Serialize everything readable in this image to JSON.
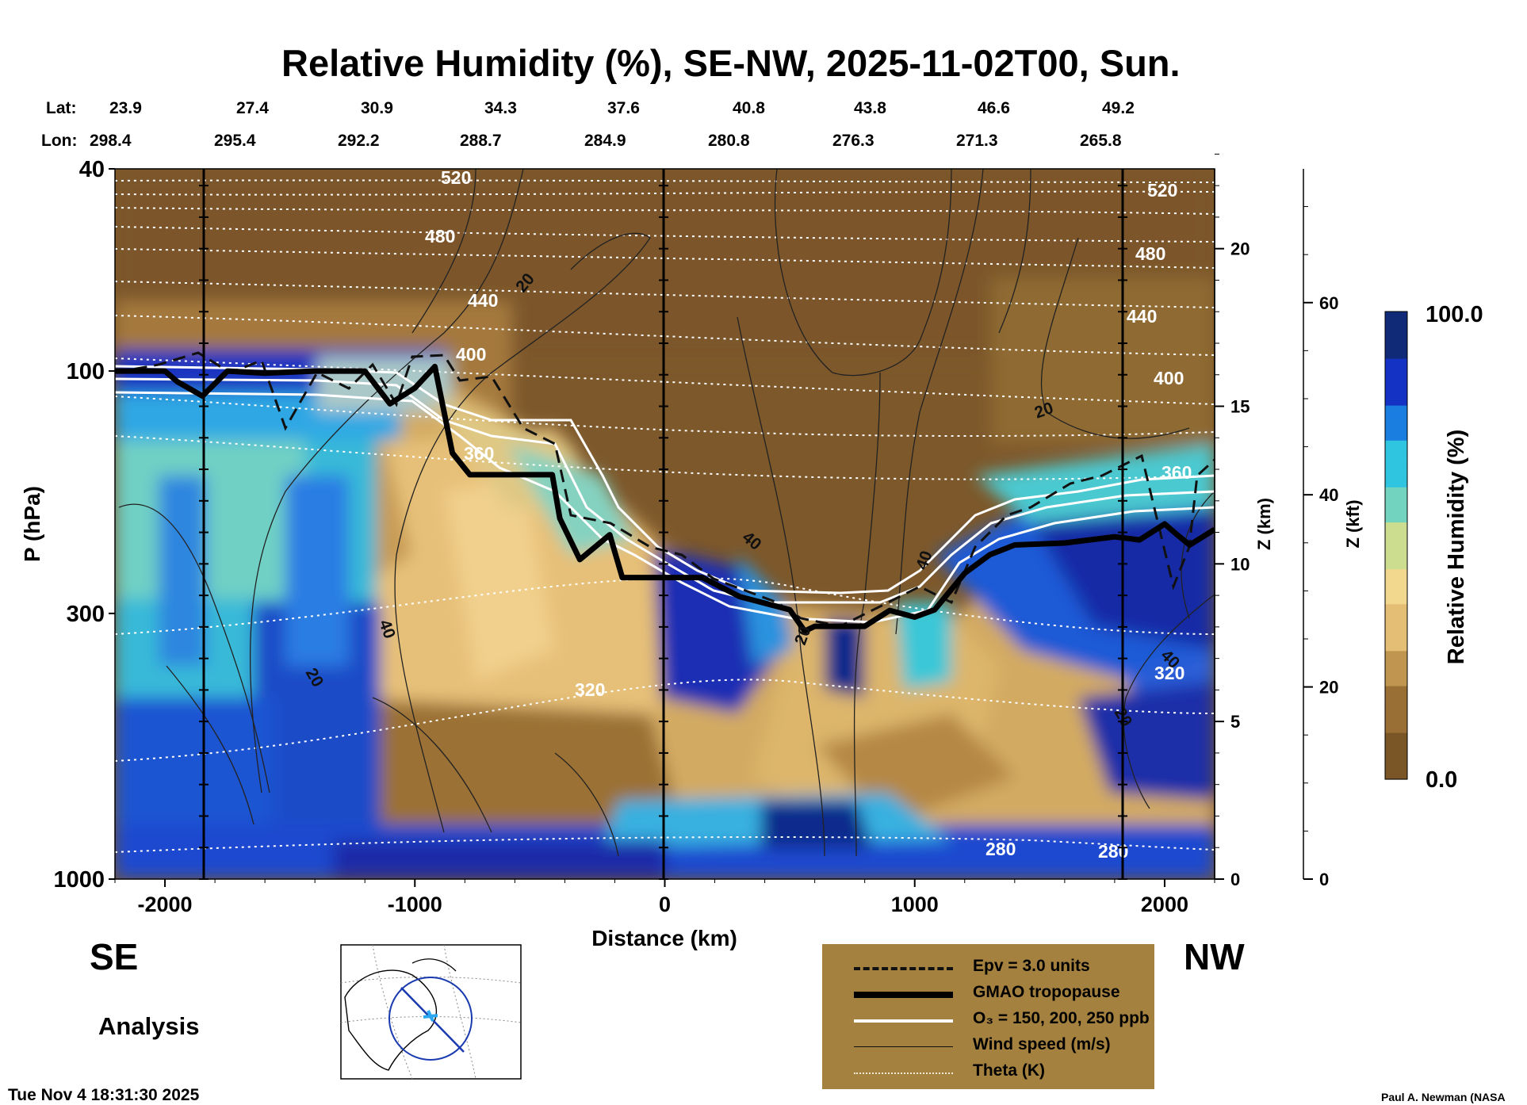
{
  "chart_data": {
    "type": "heatmap",
    "title": "Relative Humidity (%), SE-NW, 2025-11-02T00, Sun.",
    "xlabel": "Distance (km)",
    "ylabel": "P (hPa)",
    "xlim": [
      -2200,
      2200
    ],
    "ylim": [
      1000,
      40
    ],
    "y_scale": "log",
    "x_ticks": [
      -2000,
      -1000,
      0,
      1000,
      2000
    ],
    "y_ticks": [
      40,
      100,
      300,
      1000
    ],
    "z_km_label": "Z (km)",
    "z_km_ticks": [
      0,
      5,
      10,
      15,
      20
    ],
    "z_kft_label": "Z (kft)",
    "z_kft_ticks": [
      0,
      20,
      40,
      60
    ],
    "lat_label": "Lat:",
    "lon_label": "Lon:",
    "lat": [
      "23.9",
      "27.4",
      "30.9",
      "34.3",
      "37.6",
      "40.8",
      "43.8",
      "46.6",
      "49.2"
    ],
    "lon": [
      "298.4",
      "295.4",
      "292.2",
      "288.7",
      "284.9",
      "280.8",
      "276.3",
      "271.3",
      "265.8"
    ],
    "left_end": "SE",
    "right_end": "NW",
    "colorbar": {
      "label": "Relative Humidity (%)",
      "max_label": "100.0",
      "min_label": "0.0",
      "colors": [
        "#7a5526",
        "#9a6f35",
        "#c09550",
        "#e3be74",
        "#f1d88e",
        "#ccdd90",
        "#72d4bf",
        "#2fc4e0",
        "#1a7de0",
        "#1432c4",
        "#102a78"
      ]
    },
    "theta_labels": [
      "520",
      "480",
      "440",
      "400",
      "360",
      "320",
      "280",
      "520",
      "480",
      "440",
      "400",
      "360",
      "320",
      "280"
    ],
    "wind_labels": [
      "20",
      "40",
      "20",
      "20",
      "40",
      "20",
      "40",
      "40",
      "20"
    ],
    "tropopause_p": [
      [
        -2200,
        100
      ],
      [
        -2100,
        100
      ],
      [
        -2000,
        100
      ],
      [
        -1950,
        105
      ],
      [
        -1850,
        112
      ],
      [
        -1750,
        100
      ],
      [
        -1600,
        101
      ],
      [
        -1400,
        100
      ],
      [
        -1200,
        100
      ],
      [
        -1100,
        116
      ],
      [
        -1000,
        108
      ],
      [
        -920,
        98
      ],
      [
        -850,
        145
      ],
      [
        -780,
        160
      ],
      [
        -450,
        160
      ],
      [
        -420,
        195
      ],
      [
        -340,
        235
      ],
      [
        -220,
        210
      ],
      [
        -170,
        255
      ],
      [
        0,
        255
      ],
      [
        150,
        255
      ],
      [
        300,
        278
      ],
      [
        500,
        295
      ],
      [
        560,
        325
      ],
      [
        600,
        318
      ],
      [
        800,
        318
      ],
      [
        900,
        296
      ],
      [
        1000,
        305
      ],
      [
        1080,
        295
      ],
      [
        1200,
        250
      ],
      [
        1300,
        230
      ],
      [
        1400,
        220
      ],
      [
        1600,
        218
      ],
      [
        1800,
        212
      ],
      [
        1900,
        215
      ],
      [
        2000,
        200
      ],
      [
        2050,
        210
      ],
      [
        2100,
        220
      ],
      [
        2200,
        205
      ]
    ],
    "legend": [
      {
        "label": "Epv = 3.0 units",
        "style": "dashed"
      },
      {
        "label": "GMAO tropopause",
        "style": "thick"
      },
      {
        "label": "O₃ = 150, 200, 250 ppb",
        "style": "white"
      },
      {
        "label": "Wind speed (m/s)",
        "style": "thin"
      },
      {
        "label": "Theta (K)",
        "style": "dotted"
      }
    ],
    "inset_map": "map-icon",
    "label_analysis": "Analysis",
    "timestamp": "Tue Nov  4 18:31:30 2025",
    "credit": "Paul A. Newman (NASA"
  }
}
